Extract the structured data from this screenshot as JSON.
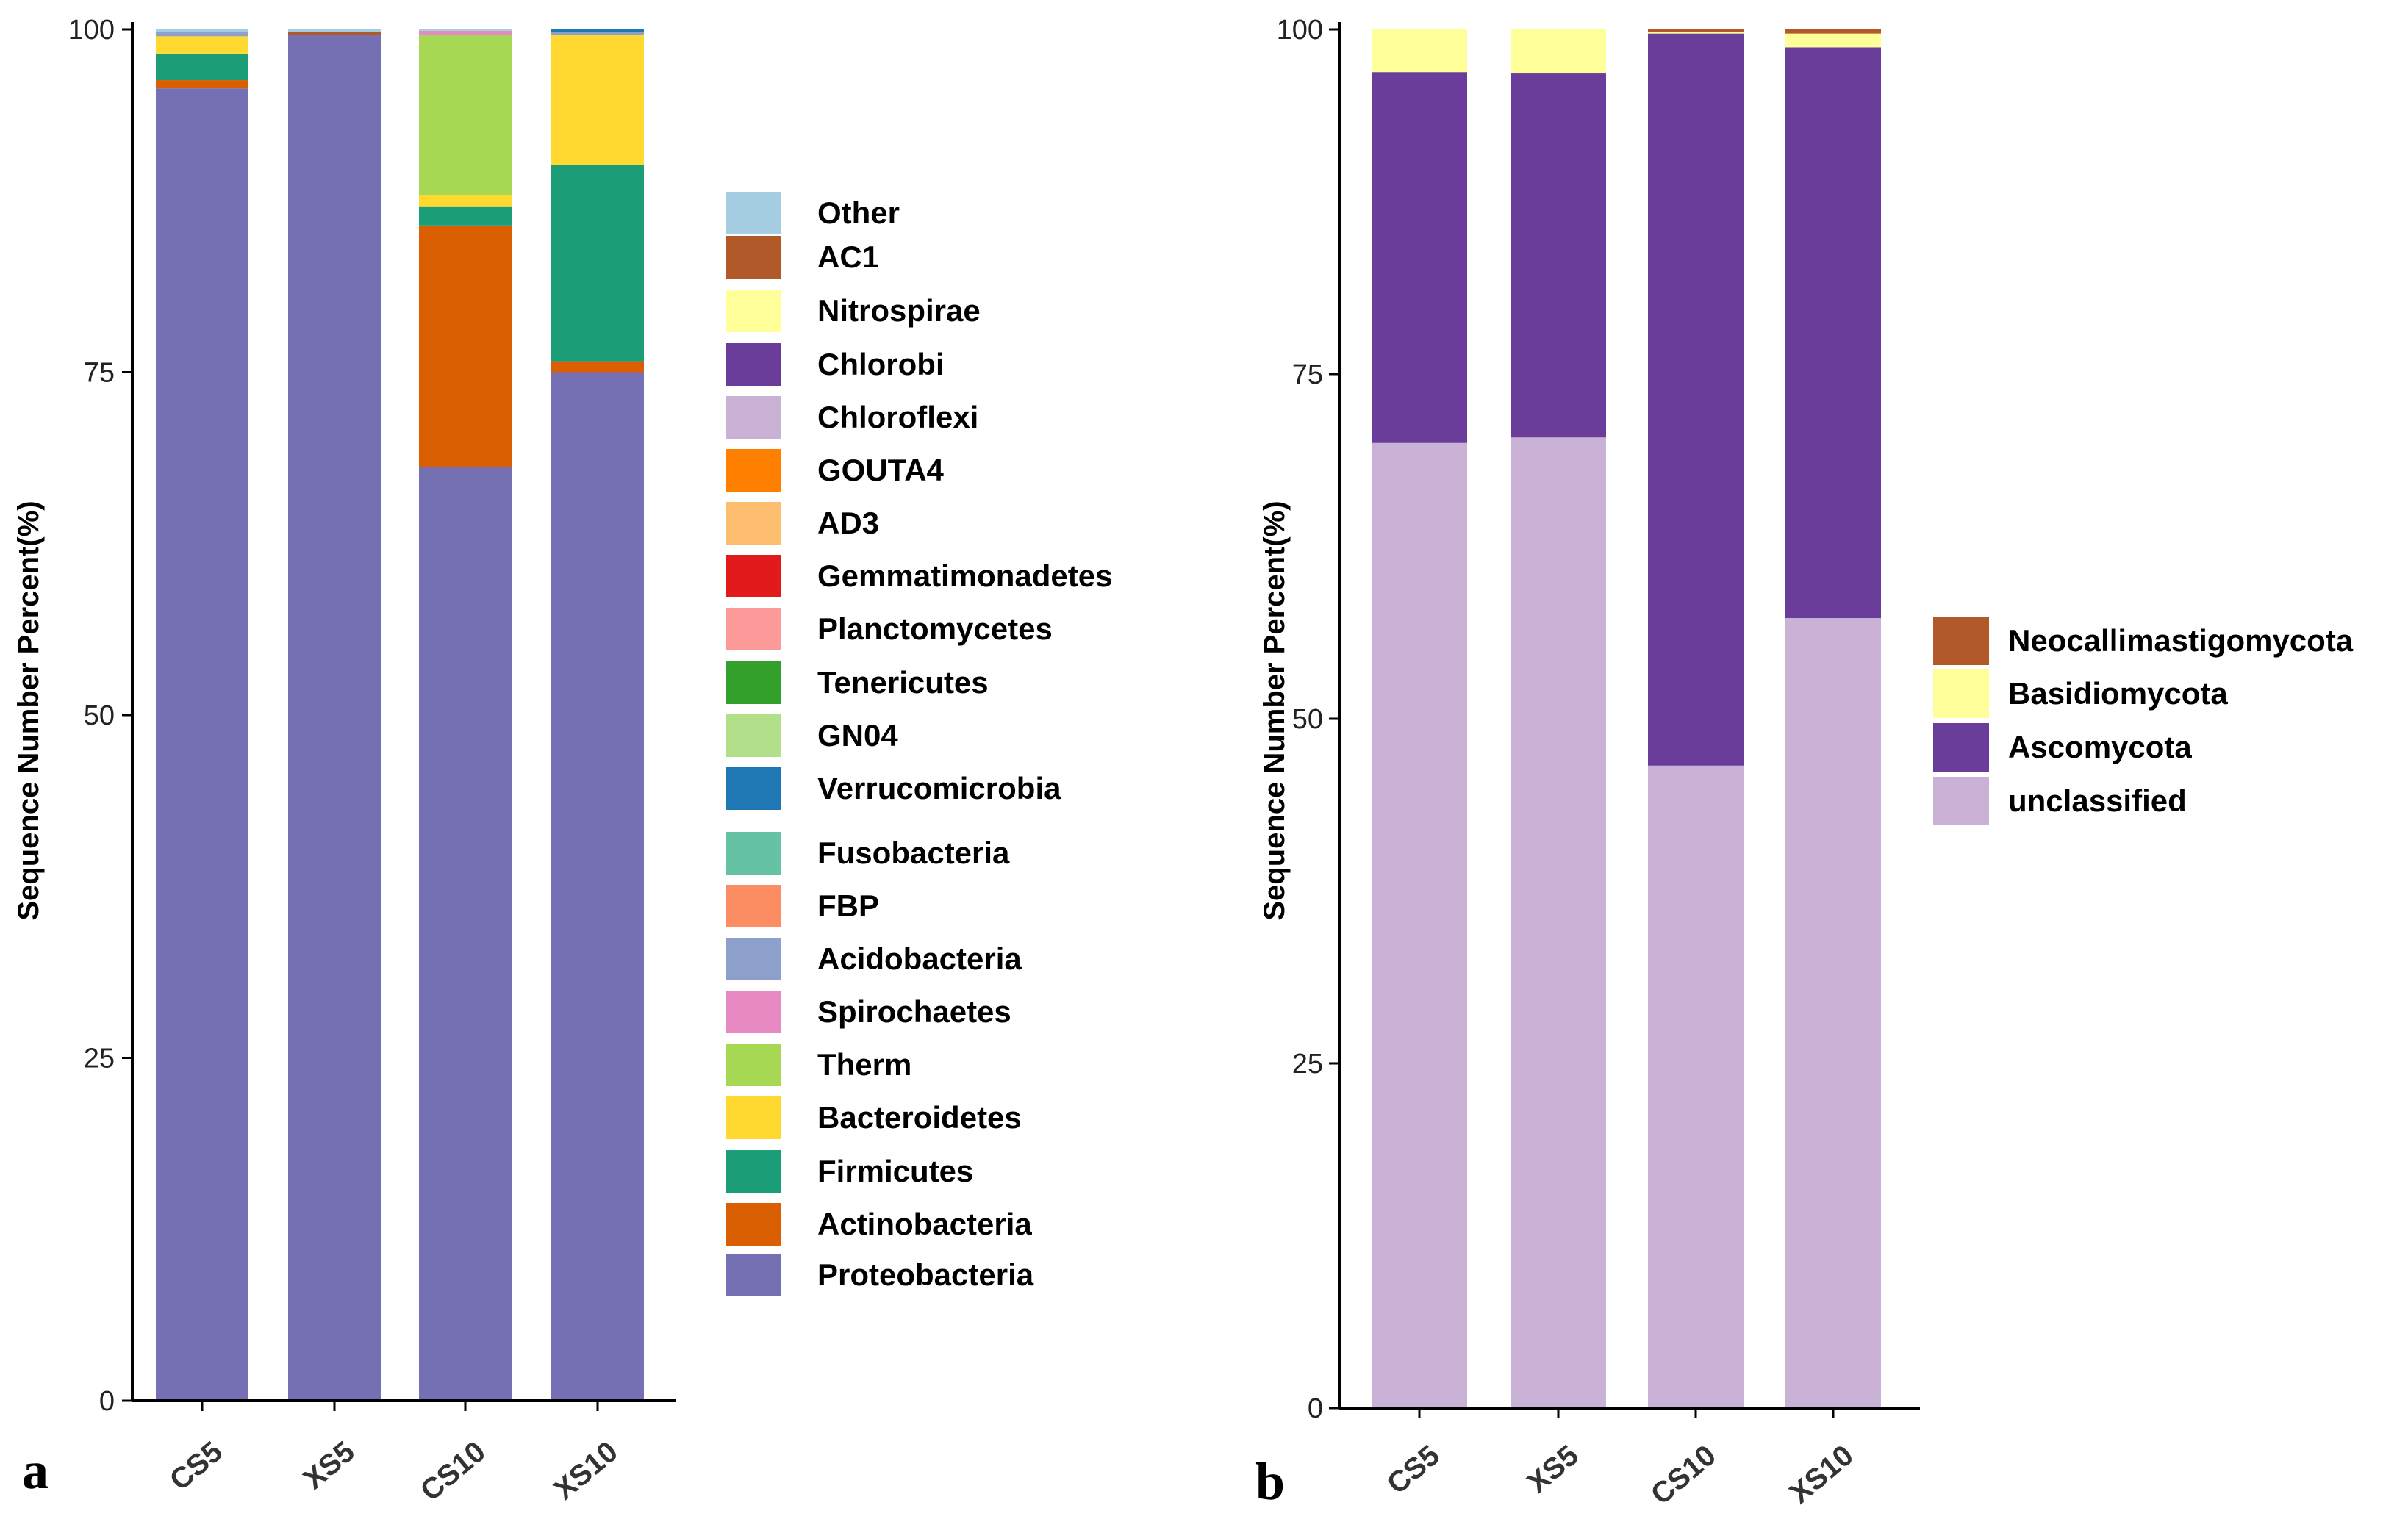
{
  "chart_data": [
    {
      "type": "bar",
      "stacked": true,
      "panel_label": "a",
      "title": "",
      "xlabel": "",
      "ylabel": "Sequence Number Percent(%)",
      "ylim": [
        0,
        100
      ],
      "yticks": [
        0,
        25,
        50,
        75,
        100
      ],
      "categories": [
        "CS5",
        "XS5",
        "CS10",
        "XS10"
      ],
      "series": [
        {
          "name": "Proteobacteria",
          "color": "#7570b3",
          "values": [
            95.7,
            99.6,
            68.1,
            75.0
          ]
        },
        {
          "name": "Actinobacteria",
          "color": "#d95f02",
          "values": [
            0.6,
            0.0,
            17.6,
            0.8
          ]
        },
        {
          "name": "Firmicutes",
          "color": "#1b9e77",
          "values": [
            1.9,
            0.0,
            1.4,
            14.3
          ]
        },
        {
          "name": "Bacteroidetes",
          "color": "#ffd92f",
          "values": [
            1.3,
            0.0,
            0.8,
            9.5
          ]
        },
        {
          "name": "Therm",
          "color": "#a6d854",
          "values": [
            0.0,
            0.0,
            11.7,
            0.0
          ]
        },
        {
          "name": "Spirochaetes",
          "color": "#e78ac3",
          "values": [
            0.0,
            0.0,
            0.3,
            0.0
          ]
        },
        {
          "name": "Acidobacteria",
          "color": "#8da0cb",
          "values": [
            0.3,
            0.0,
            0.0,
            0.2
          ]
        },
        {
          "name": "FBP",
          "color": "#fc8d62",
          "values": [
            0.0,
            0.0,
            0.0,
            0.0
          ]
        },
        {
          "name": "Fusobacteria",
          "color": "#66c2a5",
          "values": [
            0.0,
            0.0,
            0.0,
            0.0
          ]
        },
        {
          "name": "Verrucomicrobia",
          "color": "#1f78b4",
          "values": [
            0.0,
            0.0,
            0.0,
            0.2
          ]
        },
        {
          "name": "GN04",
          "color": "#b2df8a",
          "values": [
            0.0,
            0.0,
            0.0,
            0.0
          ]
        },
        {
          "name": "Tenericutes",
          "color": "#33a02c",
          "values": [
            0.0,
            0.0,
            0.0,
            0.0
          ]
        },
        {
          "name": "Planctomycetes",
          "color": "#fb9a99",
          "values": [
            0.0,
            0.0,
            0.0,
            0.0
          ]
        },
        {
          "name": "Gemmatimonadetes",
          "color": "#e31a1c",
          "values": [
            0.0,
            0.0,
            0.0,
            0.0
          ]
        },
        {
          "name": "AD3",
          "color": "#fdbf6f",
          "values": [
            0.0,
            0.0,
            0.0,
            0.0
          ]
        },
        {
          "name": "GOUTA4",
          "color": "#ff7f00",
          "values": [
            0.0,
            0.0,
            0.0,
            0.0
          ]
        },
        {
          "name": "Chloroflexi",
          "color": "#cab2d6",
          "values": [
            0.0,
            0.0,
            0.0,
            0.0
          ]
        },
        {
          "name": "Chlorobi",
          "color": "#6a3d9a",
          "values": [
            0.0,
            0.0,
            0.0,
            0.0
          ]
        },
        {
          "name": "Nitrospirae",
          "color": "#ffff99",
          "values": [
            0.0,
            0.0,
            0.0,
            0.0
          ]
        },
        {
          "name": "AC1",
          "color": "#b15928",
          "values": [
            0.0,
            0.2,
            0.0,
            0.0
          ]
        },
        {
          "name": "Other",
          "color": "#a6cee3",
          "values": [
            0.2,
            0.2,
            0.1,
            0.0
          ]
        }
      ],
      "legend": [
        "Other",
        "AC1",
        "Nitrospirae",
        "Chlorobi",
        "Chloroflexi",
        "GOUTA4",
        "AD3",
        "Gemmatimonadetes",
        "Planctomycetes",
        "Tenericutes",
        "GN04",
        "Verrucomicrobia",
        "Fusobacteria",
        "FBP",
        "Acidobacteria",
        "Spirochaetes",
        "Therm",
        "Bacteroidetes",
        "Firmicutes",
        "Actinobacteria",
        "Proteobacteria"
      ],
      "legend_position": "right"
    },
    {
      "type": "bar",
      "stacked": true,
      "panel_label": "b",
      "title": "",
      "xlabel": "",
      "ylabel": "Sequence Number Percent(%)",
      "ylim": [
        0,
        100
      ],
      "yticks": [
        0,
        25,
        50,
        75,
        100
      ],
      "categories": [
        "CS5",
        "XS5",
        "CS10",
        "XS10"
      ],
      "series": [
        {
          "name": "unclassified",
          "color": "#cab2d6",
          "values": [
            70.0,
            70.4,
            46.6,
            57.3
          ]
        },
        {
          "name": "Ascomycota",
          "color": "#6a3d9a",
          "values": [
            26.9,
            26.4,
            53.1,
            41.4
          ]
        },
        {
          "name": "Basidiomycota",
          "color": "#ffff99",
          "values": [
            3.1,
            3.2,
            0.1,
            1.0
          ]
        },
        {
          "name": "Neocallimastigomycota",
          "color": "#b15928",
          "values": [
            0.0,
            0.0,
            0.2,
            0.3
          ]
        }
      ],
      "legend": [
        "Neocallimastigomycota",
        "Basidiomycota",
        "Ascomycota",
        "unclassified"
      ],
      "legend_position": "right"
    }
  ]
}
